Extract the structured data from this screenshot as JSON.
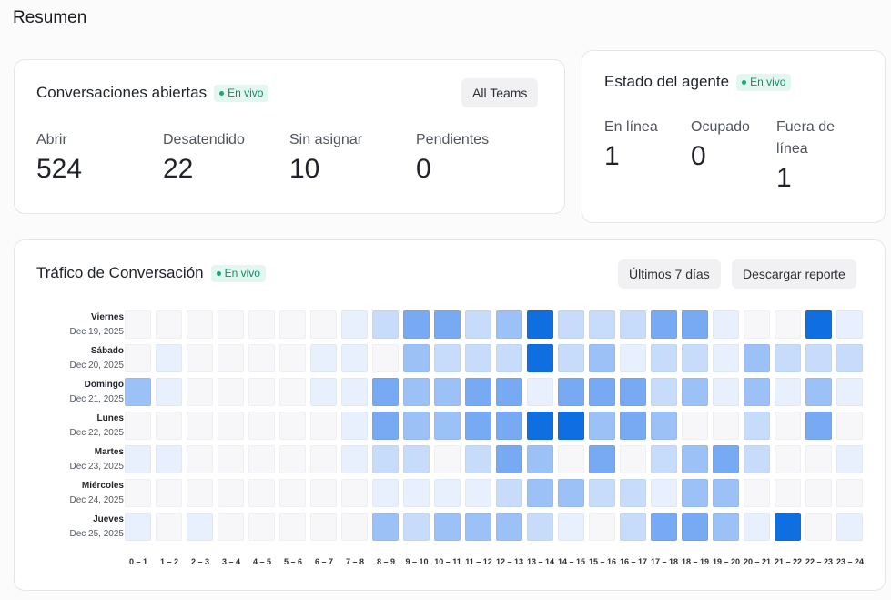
{
  "page": {
    "title": "Resumen"
  },
  "open_conversations": {
    "title": "Conversaciones abiertas",
    "badge": "En vivo",
    "filter_button": "All Teams",
    "metrics": [
      {
        "label": "Abrir",
        "value": "524"
      },
      {
        "label": "Desatendido",
        "value": "22"
      },
      {
        "label": "Sin asignar",
        "value": "10"
      },
      {
        "label": "Pendientes",
        "value": "0"
      }
    ]
  },
  "agent_status": {
    "title": "Estado del agente",
    "badge": "En vivo",
    "metrics": [
      {
        "label": "En línea",
        "value": "1"
      },
      {
        "label": "Ocupado",
        "value": "0"
      },
      {
        "label": "Fuera de línea",
        "value": "1"
      }
    ]
  },
  "traffic": {
    "title": "Tráfico de Conversación",
    "badge": "En vivo",
    "range_button": "Últimos 7 días",
    "download_button": "Descargar reporte",
    "colors": [
      "#f7f7f9",
      "#e8f0fd",
      "#c6dcfa",
      "#9bc1f7",
      "#78a9f3",
      "#0f6fe0"
    ],
    "rows": [
      {
        "day": "Viernes",
        "date": "Dec 19, 2025"
      },
      {
        "day": "Sábado",
        "date": "Dec 20, 2025"
      },
      {
        "day": "Domingo",
        "date": "Dec 21, 2025"
      },
      {
        "day": "Lunes",
        "date": "Dec 22, 2025"
      },
      {
        "day": "Martes",
        "date": "Dec 23, 2025"
      },
      {
        "day": "Miércoles",
        "date": "Dec 24, 2025"
      },
      {
        "day": "Jueves",
        "date": "Dec 25, 2025"
      }
    ],
    "hours": [
      "0 – 1",
      "1 – 2",
      "2 – 3",
      "3 – 4",
      "4 – 5",
      "5 – 6",
      "6 – 7",
      "7 – 8",
      "8 – 9",
      "9 – 10",
      "10 – 11",
      "11 – 12",
      "12 – 13",
      "13 – 14",
      "14 – 15",
      "15 – 16",
      "16 – 17",
      "17 – 18",
      "18 – 19",
      "19 – 20",
      "20 – 21",
      "21 – 22",
      "22 – 23",
      "23 – 24"
    ],
    "levels": [
      [
        0,
        0,
        0,
        0,
        0,
        0,
        0,
        1,
        2,
        4,
        4,
        2,
        3,
        5,
        2,
        2,
        2,
        4,
        4,
        1,
        0,
        0,
        5,
        1
      ],
      [
        0,
        1,
        0,
        0,
        0,
        0,
        1,
        1,
        0,
        3,
        2,
        2,
        2,
        5,
        2,
        3,
        1,
        2,
        2,
        1,
        3,
        2,
        2,
        2
      ],
      [
        3,
        1,
        0,
        0,
        0,
        0,
        1,
        1,
        4,
        3,
        3,
        4,
        4,
        1,
        4,
        4,
        4,
        2,
        3,
        1,
        3,
        1,
        3,
        1
      ],
      [
        0,
        0,
        0,
        0,
        0,
        0,
        0,
        1,
        4,
        3,
        3,
        4,
        4,
        5,
        5,
        3,
        4,
        3,
        0,
        0,
        2,
        0,
        4,
        0
      ],
      [
        1,
        1,
        0,
        0,
        0,
        0,
        0,
        1,
        2,
        2,
        0,
        2,
        4,
        3,
        0,
        4,
        0,
        2,
        3,
        4,
        2,
        0,
        0,
        1
      ],
      [
        0,
        0,
        0,
        0,
        0,
        0,
        0,
        0,
        1,
        1,
        1,
        1,
        2,
        3,
        3,
        2,
        2,
        1,
        3,
        3,
        0,
        0,
        0,
        0
      ],
      [
        1,
        0,
        1,
        0,
        0,
        0,
        0,
        0,
        3,
        2,
        3,
        3,
        3,
        2,
        1,
        0,
        2,
        4,
        4,
        3,
        1,
        5,
        0,
        1
      ]
    ]
  }
}
